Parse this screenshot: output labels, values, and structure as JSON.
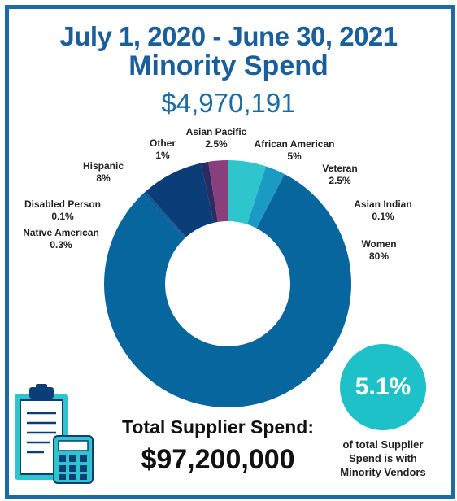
{
  "header": {
    "title_line1": "July 1, 2020 - June 30, 2021",
    "title_line2": "Minority Spend",
    "amount": "$4,970,191"
  },
  "chart_data": {
    "type": "donut",
    "slices": [
      {
        "label": "African American",
        "value": 5,
        "display": "5%",
        "color": "#2ec5cc"
      },
      {
        "label": "Veteran",
        "value": 2.5,
        "display": "2.5%",
        "color": "#1a9bc4"
      },
      {
        "label": "Asian Indian",
        "value": 0.1,
        "display": "0.1%",
        "color": "#1580b5"
      },
      {
        "label": "Women",
        "value": 80,
        "display": "80%",
        "color": "#08669f"
      },
      {
        "label": "Native American",
        "value": 0.3,
        "display": "0.3%",
        "color": "#0a5a92"
      },
      {
        "label": "Disabled Person",
        "value": 0.1,
        "display": "0.1%",
        "color": "#07497f"
      },
      {
        "label": "Hispanic",
        "value": 8,
        "display": "8%",
        "color": "#0b3d78"
      },
      {
        "label": "Other",
        "value": 1,
        "display": "1%",
        "color": "#2b2d62"
      },
      {
        "label": "Asian Pacific",
        "value": 2.5,
        "display": "2.5%",
        "color": "#8a3f7d"
      }
    ]
  },
  "summary": {
    "badge_value": "5.1%",
    "badge_caption_lines": [
      "of total Supplier",
      "Spend is with",
      "Minority Vendors"
    ],
    "total_label": "Total Supplier Spend:",
    "total_value": "$97,200,000"
  },
  "icons": [
    "clipboard-icon",
    "calculator-icon"
  ]
}
